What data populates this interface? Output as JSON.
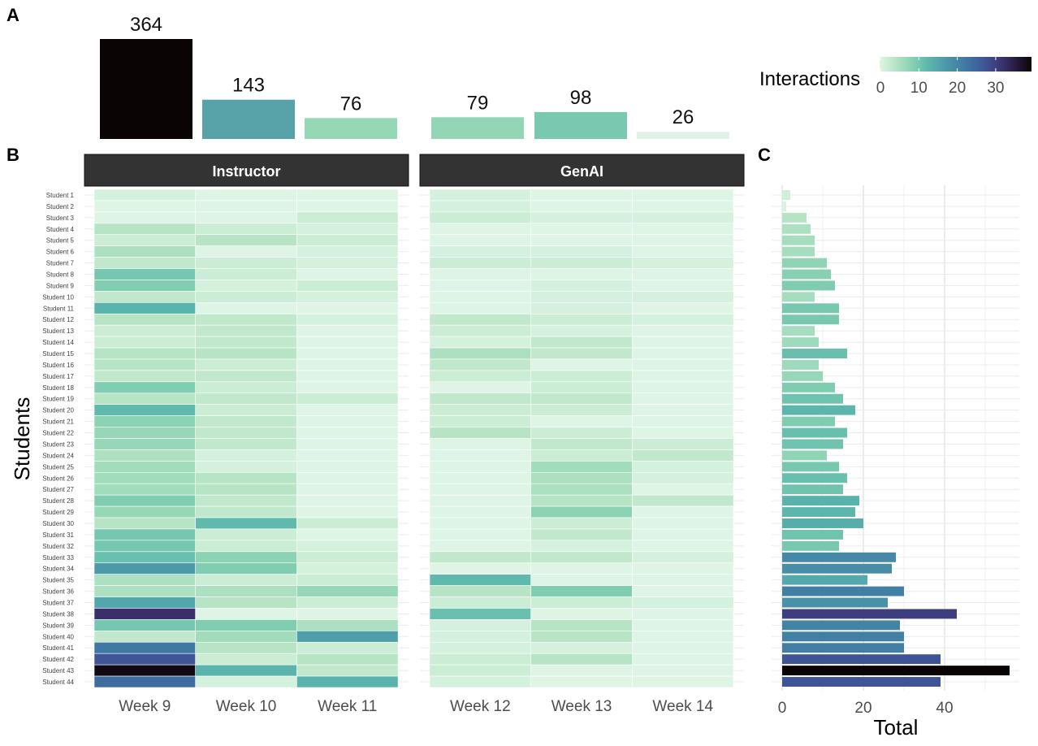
{
  "chart_data": [
    {
      "panel": "A",
      "type": "bar",
      "categories": [
        "Week 9",
        "Week 10",
        "Week 11",
        "Week 12",
        "Week 13",
        "Week 14"
      ],
      "values": [
        364,
        143,
        76,
        79,
        98,
        26
      ],
      "colors": [
        "#0b0405",
        "#58a2aa",
        "#95d8b5",
        "#92d6b5",
        "#7bc8b0",
        "#e0f3e6"
      ]
    },
    {
      "panel": "B",
      "type": "heatmap",
      "facets": [
        "Instructor",
        "GenAI"
      ],
      "facet_weeks": [
        [
          "Week 9",
          "Week 10",
          "Week 11"
        ],
        [
          "Week 12",
          "Week 13",
          "Week 14"
        ]
      ],
      "ylabel": "Students",
      "legend_title": "Interactions",
      "legend_ticks": [
        0,
        10,
        20,
        30
      ],
      "legend_range": [
        0,
        39
      ],
      "legend_placement": "top-right",
      "rows": [
        "Student 1",
        "Student 2",
        "Student 3",
        "Student 4",
        "Student 5",
        "Student 6",
        "Student 7",
        "Student 8",
        "Student 9",
        "Student 10",
        "Student 11",
        "Student 12",
        "Student 13",
        "Student 14",
        "Student 15",
        "Student 16",
        "Student 17",
        "Student 18",
        "Student 19",
        "Student 20",
        "Student 21",
        "Student 22",
        "Student 23",
        "Student 24",
        "Student 25",
        "Student 26",
        "Student 27",
        "Student 28",
        "Student 29",
        "Student 30",
        "Student 31",
        "Student 32",
        "Student 33",
        "Student 34",
        "Student 35",
        "Student 36",
        "Student 37",
        "Student 38",
        "Student 39",
        "Student 40",
        "Student 41",
        "Student 42",
        "Student 43",
        "Student 44"
      ],
      "values": [
        [
          1,
          0,
          0,
          1,
          0,
          0
        ],
        [
          0,
          0,
          0,
          1,
          0,
          0
        ],
        [
          0,
          0,
          2,
          2,
          1,
          1
        ],
        [
          4,
          2,
          1,
          0,
          0,
          0
        ],
        [
          2,
          4,
          2,
          0,
          0,
          0
        ],
        [
          5,
          0,
          1,
          1,
          1,
          0
        ],
        [
          3,
          2,
          1,
          2,
          2,
          1
        ],
        [
          10,
          2,
          0,
          0,
          0,
          0
        ],
        [
          9,
          1,
          2,
          0,
          1,
          0
        ],
        [
          3,
          2,
          1,
          0,
          1,
          1
        ],
        [
          13,
          0,
          0,
          0,
          1,
          0
        ],
        [
          4,
          3,
          1,
          3,
          2,
          1
        ],
        [
          2,
          3,
          0,
          2,
          1,
          0
        ],
        [
          2,
          3,
          0,
          1,
          3,
          0
        ],
        [
          4,
          4,
          0,
          5,
          3,
          0
        ],
        [
          4,
          2,
          0,
          3,
          0,
          0
        ],
        [
          3,
          3,
          0,
          2,
          2,
          0
        ],
        [
          9,
          2,
          0,
          0,
          2,
          0
        ],
        [
          4,
          3,
          2,
          3,
          3,
          0
        ],
        [
          12,
          2,
          0,
          2,
          2,
          0
        ],
        [
          8,
          3,
          0,
          2,
          0,
          0
        ],
        [
          7,
          3,
          0,
          4,
          2,
          0
        ],
        [
          7,
          3,
          0,
          0,
          3,
          2
        ],
        [
          5,
          1,
          0,
          0,
          2,
          3
        ],
        [
          6,
          1,
          0,
          0,
          6,
          1
        ],
        [
          6,
          4,
          0,
          0,
          5,
          1
        ],
        [
          6,
          4,
          0,
          0,
          5,
          0
        ],
        [
          9,
          3,
          0,
          0,
          4,
          3
        ],
        [
          7,
          3,
          0,
          0,
          8,
          0
        ],
        [
          4,
          12,
          2,
          0,
          2,
          0
        ],
        [
          10,
          2,
          0,
          0,
          3,
          0
        ],
        [
          10,
          2,
          1,
          0,
          1,
          0
        ],
        [
          11,
          8,
          2,
          3,
          3,
          1
        ],
        [
          17,
          9,
          1,
          0,
          0,
          0
        ],
        [
          5,
          2,
          2,
          12,
          0,
          0
        ],
        [
          5,
          5,
          7,
          4,
          9,
          0
        ],
        [
          15,
          4,
          2,
          2,
          2,
          1
        ],
        [
          32,
          0,
          0,
          11,
          0,
          0
        ],
        [
          10,
          9,
          5,
          1,
          4,
          0
        ],
        [
          3,
          6,
          16,
          1,
          4,
          0
        ],
        [
          22,
          4,
          2,
          1,
          1,
          0
        ],
        [
          27,
          2,
          4,
          2,
          4,
          0
        ],
        [
          38,
          13,
          3,
          2,
          0,
          0
        ],
        [
          24,
          1,
          13,
          1,
          0,
          0
        ]
      ]
    },
    {
      "panel": "C",
      "type": "bar",
      "orientation": "horizontal",
      "xlabel": "Total",
      "xticks": [
        0,
        20,
        40
      ],
      "xlim": [
        0,
        58
      ],
      "values": [
        2,
        1,
        6,
        7,
        8,
        8,
        11,
        12,
        13,
        8,
        14,
        14,
        8,
        9,
        16,
        9,
        10,
        13,
        15,
        18,
        13,
        16,
        15,
        11,
        14,
        16,
        15,
        19,
        18,
        20,
        15,
        14,
        28,
        27,
        21,
        30,
        26,
        43,
        29,
        30,
        30,
        39,
        56,
        39
      ]
    }
  ],
  "labels": {
    "panel_a": "A",
    "panel_b": "B",
    "panel_c": "C"
  }
}
